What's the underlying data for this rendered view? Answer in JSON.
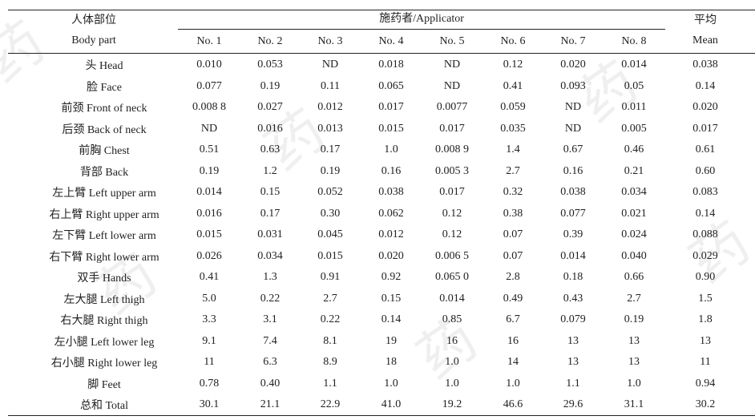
{
  "header": {
    "body_part_zh": "人体部位",
    "body_part_en": "Body part",
    "applicator": "施药者/Applicator",
    "mean_zh": "平均",
    "mean_en": "Mean",
    "columns": [
      "No. 1",
      "No. 2",
      "No. 3",
      "No. 4",
      "No. 5",
      "No. 6",
      "No. 7",
      "No. 8"
    ]
  },
  "rows": [
    {
      "part": "头 Head",
      "values": [
        "0.010",
        "0.053",
        "ND",
        "0.018",
        "ND",
        "0.12",
        "0.020",
        "0.014"
      ],
      "mean": "0.038"
    },
    {
      "part": "脸 Face",
      "values": [
        "0.077",
        "0.19",
        "0.11",
        "0.065",
        "ND",
        "0.41",
        "0.093",
        "0.05"
      ],
      "mean": "0.14"
    },
    {
      "part": "前颈 Front of neck",
      "values": [
        "0.008 8",
        "0.027",
        "0.012",
        "0.017",
        "0.0077",
        "0.059",
        "ND",
        "0.011"
      ],
      "mean": "0.020"
    },
    {
      "part": "后颈 Back of neck",
      "values": [
        "ND",
        "0.016",
        "0.013",
        "0.015",
        "0.017",
        "0.035",
        "ND",
        "0.005"
      ],
      "mean": "0.017"
    },
    {
      "part": "前胸 Chest",
      "values": [
        "0.51",
        "0.63",
        "0.17",
        "1.0",
        "0.008 9",
        "1.4",
        "0.67",
        "0.46"
      ],
      "mean": "0.61"
    },
    {
      "part": "背部 Back",
      "values": [
        "0.19",
        "1.2",
        "0.19",
        "0.16",
        "0.005 3",
        "2.7",
        "0.16",
        "0.21"
      ],
      "mean": "0.60"
    },
    {
      "part": "左上臂 Left upper arm",
      "values": [
        "0.014",
        "0.15",
        "0.052",
        "0.038",
        "0.017",
        "0.32",
        "0.038",
        "0.034"
      ],
      "mean": "0.083"
    },
    {
      "part": "右上臂 Right upper arm",
      "values": [
        "0.016",
        "0.17",
        "0.30",
        "0.062",
        "0.12",
        "0.38",
        "0.077",
        "0.021"
      ],
      "mean": "0.14"
    },
    {
      "part": "左下臂 Left lower arm",
      "values": [
        "0.015",
        "0.031",
        "0.045",
        "0.012",
        "0.12",
        "0.07",
        "0.39",
        "0.024"
      ],
      "mean": "0.088"
    },
    {
      "part": "右下臂 Right lower arm",
      "values": [
        "0.026",
        "0.034",
        "0.015",
        "0.020",
        "0.006 5",
        "0.07",
        "0.014",
        "0.040"
      ],
      "mean": "0.029"
    },
    {
      "part": "双手 Hands",
      "values": [
        "0.41",
        "1.3",
        "0.91",
        "0.92",
        "0.065 0",
        "2.8",
        "0.18",
        "0.66"
      ],
      "mean": "0.90"
    },
    {
      "part": "左大腿 Left thigh",
      "values": [
        "5.0",
        "0.22",
        "2.7",
        "0.15",
        "0.014",
        "0.49",
        "0.43",
        "2.7"
      ],
      "mean": "1.5"
    },
    {
      "part": "右大腿 Right thigh",
      "values": [
        "3.3",
        "3.1",
        "0.22",
        "0.14",
        "0.85",
        "6.7",
        "0.079",
        "0.19"
      ],
      "mean": "1.8"
    },
    {
      "part": "左小腿 Left lower leg",
      "values": [
        "9.1",
        "7.4",
        "8.1",
        "19",
        "16",
        "16",
        "13",
        "13"
      ],
      "mean": "13"
    },
    {
      "part": "右小腿 Right lower leg",
      "values": [
        "11",
        "6.3",
        "8.9",
        "18",
        "1.0",
        "14",
        "13",
        "13"
      ],
      "mean": "11"
    },
    {
      "part": "脚 Feet",
      "values": [
        "0.78",
        "0.40",
        "1.1",
        "1.0",
        "1.0",
        "1.0",
        "1.1",
        "1.0"
      ],
      "mean": "0.94"
    },
    {
      "part": "总和 Total",
      "values": [
        "30.1",
        "21.1",
        "22.9",
        "41.0",
        "19.2",
        "46.6",
        "29.6",
        "31.1"
      ],
      "mean": "30.2"
    }
  ]
}
